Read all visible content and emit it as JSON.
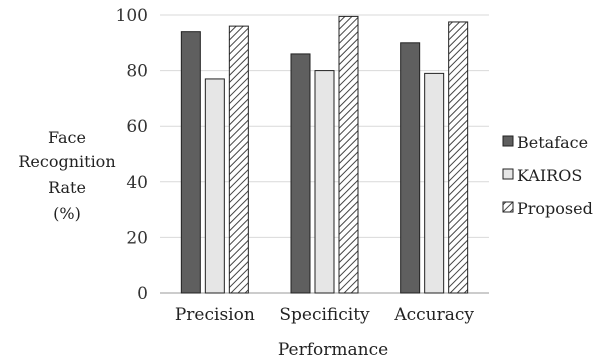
{
  "chart_data": {
    "type": "bar",
    "categories": [
      "Precision",
      "Specificity",
      "Accuracy"
    ],
    "series": [
      {
        "name": "Betaface",
        "values": [
          94,
          86,
          90
        ],
        "color": "#5f5f5f",
        "pattern": "solid"
      },
      {
        "name": "KAIROS",
        "values": [
          77,
          80,
          79
        ],
        "color": "#e6e6e6",
        "pattern": "solid"
      },
      {
        "name": "Proposed",
        "values": [
          96,
          99.5,
          97.5
        ],
        "color": "#ffffff",
        "pattern": "hatched"
      }
    ],
    "xlabel": "Performance",
    "ylabel_lines": [
      "Face",
      "Recognition",
      "Rate",
      "(%)"
    ],
    "ylim": [
      0,
      100
    ],
    "yticks": [
      0,
      20,
      40,
      60,
      80,
      100
    ],
    "grid": true,
    "legend_position": "right"
  }
}
